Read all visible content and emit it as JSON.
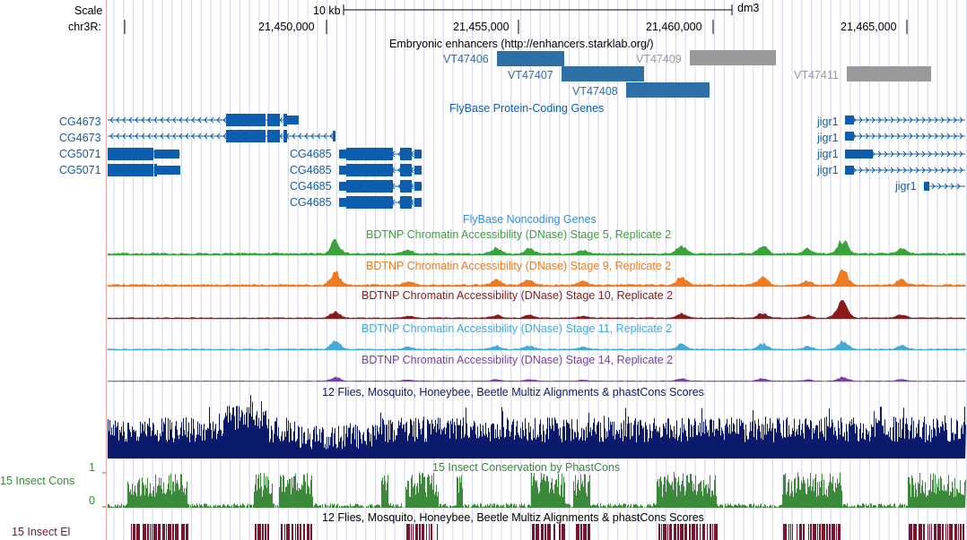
{
  "ruler": {
    "scale_label": "Scale",
    "chrom_label": "chr3R:",
    "scale_bar_label": "10 kb",
    "assembly": "dm3",
    "ticks": [
      "21,450,000",
      "21,455,000",
      "21,460,000",
      "21,465,000"
    ]
  },
  "tracks": {
    "enhancers": {
      "title": "Embryonic enhancers (http://enhancers.starklab.org/)",
      "items": [
        {
          "name": "VT47406",
          "color": "#2e6fa5"
        },
        {
          "name": "VT47407",
          "color": "#2e6fa5"
        },
        {
          "name": "VT47408",
          "color": "#2e6fa5"
        },
        {
          "name": "VT47409",
          "color": "#999999"
        },
        {
          "name": "VT47411",
          "color": "#999999"
        }
      ]
    },
    "protein_coding": {
      "title": "FlyBase Protein-Coding Genes",
      "color": "#0d5eaf",
      "genes": [
        "CG4673",
        "CG4673",
        "CG5071",
        "CG5071",
        "CG4685",
        "CG4685",
        "CG4685",
        "CG4685",
        "jigr1",
        "jigr1",
        "jigr1",
        "jigr1",
        "jigr1"
      ]
    },
    "noncoding": {
      "title": "FlyBase Noncoding Genes",
      "color": "#3a8fd6"
    },
    "dnase": [
      {
        "title": "BDTNP Chromatin Accessibility (DNase) Stage 5, Replicate 2",
        "color": "#3aa43a"
      },
      {
        "title": "BDTNP Chromatin Accessibility (DNase) Stage 9, Replicate 2",
        "color": "#f07a1e"
      },
      {
        "title": "BDTNP Chromatin Accessibility (DNase) Stage 10, Replicate 2",
        "color": "#8b1a1a"
      },
      {
        "title": "BDTNP Chromatin Accessibility (DNase) Stage 11, Replicate 2",
        "color": "#45aad6"
      },
      {
        "title": "BDTNP Chromatin Accessibility (DNase) Stage 14, Replicate 2",
        "color": "#7c3fa8"
      }
    ],
    "multiz": {
      "title": "12 Flies, Mosquito, Honeybee, Beetle Multiz Alignments & phastCons Scores",
      "color": "#0b1a6b"
    },
    "phastcons": {
      "title": "15 Insect Conservation by PhastCons",
      "side_label": "15 Insect Cons",
      "axis_max": "1",
      "axis_min": "0",
      "color": "#3a8a3a"
    },
    "elements": {
      "title": "12 Flies, Mosquito, Honeybee, Beetle Multiz Alignments & phastCons Scores",
      "side_label": "15 Insect El",
      "color": "#7a1530"
    }
  }
}
